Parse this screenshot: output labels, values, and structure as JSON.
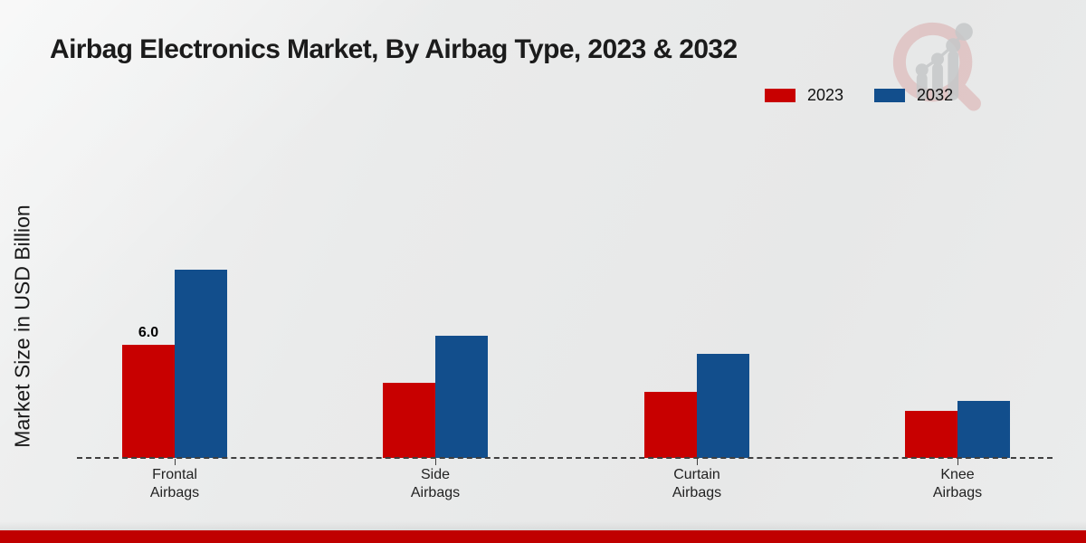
{
  "chart_data": {
    "type": "bar",
    "title": "Airbag Electronics Market, By Airbag Type, 2023 & 2032",
    "xlabel": "",
    "ylabel": "Market Size in USD Billion",
    "categories": [
      "Frontal Airbags",
      "Side Airbags",
      "Curtain Airbags",
      "Knee Airbags"
    ],
    "category_lines": [
      [
        "Frontal",
        "Airbags"
      ],
      [
        "Side",
        "Airbags"
      ],
      [
        "Curtain",
        "Airbags"
      ],
      [
        "Knee",
        "Airbags"
      ]
    ],
    "series": [
      {
        "name": "2023",
        "color": "#c80000",
        "values": [
          6.0,
          4.0,
          3.5,
          2.5
        ],
        "data_labels": [
          "6.0",
          null,
          null,
          null
        ]
      },
      {
        "name": "2032",
        "color": "#124e8c",
        "values": [
          10.0,
          6.5,
          5.5,
          3.0
        ],
        "data_labels": [
          null,
          null,
          null,
          null
        ]
      }
    ],
    "ylim": [
      0,
      10.5
    ],
    "grid": false,
    "axis_ticks_visible": false,
    "legend_position": "top-right",
    "baseline_style": "dashed"
  },
  "footer": {
    "bar_color": "#c00000"
  }
}
